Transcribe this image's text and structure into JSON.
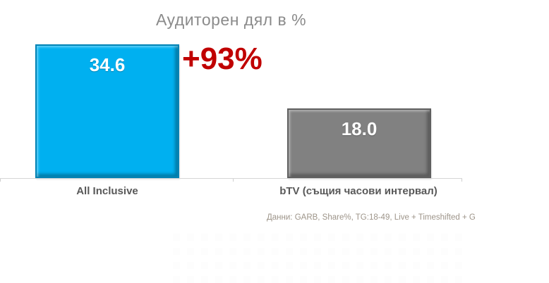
{
  "chart_data": {
    "type": "bar",
    "title": "Аудиторен дял в %",
    "categories": [
      "All Inclusive",
      "bTV (същия часови интервал)"
    ],
    "values": [
      34.6,
      18.0
    ],
    "value_labels": [
      "34.6",
      "18.0"
    ],
    "series_colors": [
      "#00b0f0",
      "#818181"
    ],
    "value_label_color": "#ffffff",
    "annotation": {
      "text": "+93%",
      "color": "#c00000"
    },
    "xlabel": "",
    "ylabel": "",
    "ylim": [
      0,
      36
    ],
    "grid": false,
    "legend": false,
    "title_color": "#8b8b8b",
    "footnote": "Данни: GARB, Share%, TG:18-49, Live + Timeshifted + G"
  }
}
